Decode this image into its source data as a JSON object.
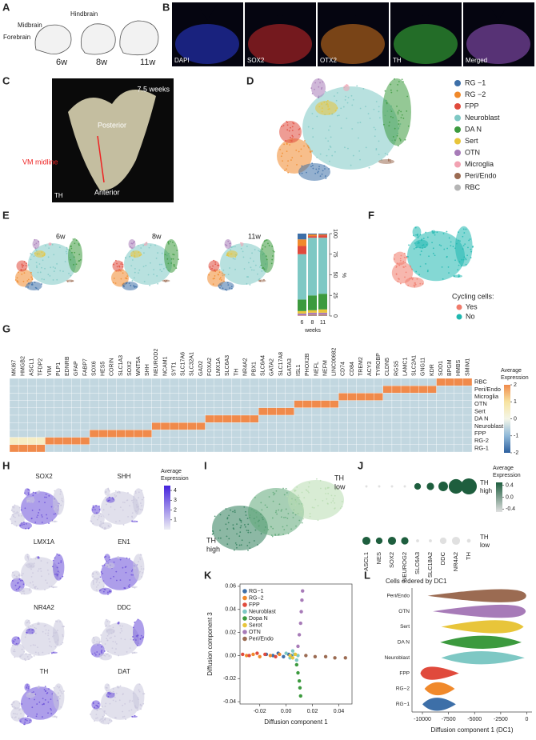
{
  "panel_a": {
    "letter": "A",
    "regions": [
      "Hindbrain",
      "Midbrain",
      "Forebrain"
    ],
    "ages": [
      "6w",
      "8w",
      "11w"
    ]
  },
  "panel_b": {
    "letter": "B",
    "channels": [
      "DAPI",
      "SOX2",
      "OTX2",
      "TH",
      "Merged"
    ],
    "colors": [
      "#2a3ad8",
      "#d02a2a",
      "#d9781e",
      "#3cc23c",
      "#9a58c8"
    ]
  },
  "panel_c": {
    "letter": "C",
    "age": "7.5 weeks",
    "posterior": "Posterior",
    "midline": "VM midline",
    "anterior": "Anterior",
    "stain": "TH"
  },
  "panel_d": {
    "letter": "D",
    "legend": [
      {
        "name": "RG −1",
        "color": "#3d6fa8"
      },
      {
        "name": "RG −2",
        "color": "#f0892b"
      },
      {
        "name": "FPP",
        "color": "#e04a3c"
      },
      {
        "name": "Neuroblast",
        "color": "#7ec8c4"
      },
      {
        "name": "DA N",
        "color": "#3c9a3e"
      },
      {
        "name": "Sert",
        "color": "#e8c53a"
      },
      {
        "name": "OTN",
        "color": "#a77bb8"
      },
      {
        "name": "Microglia",
        "color": "#f2a2b2"
      },
      {
        "name": "Peri/Endo",
        "color": "#9b6b52"
      },
      {
        "name": "RBC",
        "color": "#b5b5b5"
      }
    ]
  },
  "panel_e": {
    "letter": "E",
    "umap_titles": [
      "6w",
      "8w",
      "11w"
    ],
    "bar": {
      "categories": [
        "6",
        "8",
        "11"
      ],
      "xlabel": "weeks",
      "ylabel": "%",
      "ylim": [
        0,
        100
      ],
      "yticks": [
        0,
        25,
        50,
        75,
        100
      ],
      "series": [
        {
          "color": "#b5b5b5",
          "values": [
            0.2,
            0.5,
            0.5
          ]
        },
        {
          "color": "#9b6b52",
          "values": [
            0.3,
            1,
            1
          ]
        },
        {
          "color": "#f2a2b2",
          "values": [
            0.5,
            0.5,
            0.5
          ]
        },
        {
          "color": "#a77bb8",
          "values": [
            2,
            2,
            2
          ]
        },
        {
          "color": "#e8c53a",
          "values": [
            3,
            3,
            4
          ]
        },
        {
          "color": "#3c9a3e",
          "values": [
            14,
            18,
            19
          ]
        },
        {
          "color": "#7ec8c4",
          "values": [
            55,
            70,
            68
          ]
        },
        {
          "color": "#e04a3c",
          "values": [
            10,
            2,
            3
          ]
        },
        {
          "color": "#f0892b",
          "values": [
            8,
            2,
            1
          ]
        },
        {
          "color": "#3d6fa8",
          "values": [
            7,
            1,
            1
          ]
        }
      ]
    }
  },
  "panel_f": {
    "letter": "F",
    "legend_title": "Cycling cells:",
    "legend": [
      {
        "name": "Yes",
        "color": "#f07b6b"
      },
      {
        "name": "No",
        "color": "#1fb8b0"
      }
    ]
  },
  "panel_g": {
    "letter": "G",
    "genes": [
      "MKI67",
      "HMGB2",
      "ASCL1",
      "TFDP2",
      "VIM",
      "PLP1",
      "EDNRB",
      "GFAP",
      "FABP7",
      "SOX6",
      "HES5",
      "CORIN",
      "SLC1A3",
      "SOX2",
      "WNT5A",
      "SHH",
      "NEUROD2",
      "NCAM1",
      "SYT1",
      "SLC17A6",
      "SLC32A1",
      "GAD2",
      "FOXA2",
      "LMX1A",
      "SLC6A3",
      "TH",
      "NR4A2",
      "PBX1",
      "SLC6A4",
      "GATA2",
      "SLC17A8",
      "GATA3",
      "ISL1",
      "PHOX2B",
      "NEFL",
      "NEFM",
      "LINC00682",
      "CD74",
      "CD84",
      "TREM2",
      "ACY3",
      "TYROBP",
      "CLDN5",
      "RGS5",
      "LAMC1",
      "SLC2A1",
      "GNG11",
      "KDR",
      "SOD1",
      "BPGM",
      "HMBS",
      "SMIM1"
    ],
    "rows": [
      "RBC",
      "Peri/Endo",
      "Microglia",
      "OTN",
      "Sert",
      "DA N",
      "Neuroblast",
      "FPP",
      "RG-2",
      "RG-1"
    ],
    "values": [
      [
        -0.5,
        -0.5,
        -0.5,
        -0.5,
        -0.5,
        -0.5,
        -0.5,
        -0.5,
        -0.5,
        -0.5,
        -0.5,
        -0.5,
        -0.5,
        -0.5,
        -0.5,
        -0.5,
        -0.5,
        -0.5,
        -0.5,
        -0.5,
        -0.5,
        -0.5,
        -0.5,
        -0.5,
        -0.5,
        -0.5,
        -0.5,
        -0.5,
        -0.5,
        -0.5,
        -0.5,
        -0.5,
        -0.5,
        -0.5,
        -0.5,
        -0.5,
        -0.5,
        -0.5,
        -0.5,
        -0.5,
        -0.5,
        -0.5,
        -0.5,
        -0.5,
        -0.5,
        -0.5,
        -0.5,
        -0.5,
        2,
        2,
        2,
        2
      ],
      [
        -0.5,
        -0.5,
        -0.5,
        -0.5,
        -0.5,
        -0.5,
        -0.5,
        -0.5,
        -0.5,
        -0.5,
        -0.5,
        -0.5,
        -0.5,
        -0.5,
        -0.5,
        -0.5,
        -0.5,
        -0.5,
        -0.5,
        -0.5,
        -0.5,
        -0.5,
        -0.5,
        -0.5,
        -0.5,
        -0.5,
        -0.5,
        -0.5,
        -0.5,
        -0.5,
        -0.5,
        -0.5,
        -0.5,
        -0.5,
        -0.5,
        -0.5,
        -0.5,
        -0.5,
        -0.5,
        -0.5,
        -0.5,
        -0.5,
        2,
        2,
        2,
        2,
        2,
        2,
        -0.5,
        -0.5,
        -0.5,
        -0.5
      ],
      [
        -0.5,
        -0.5,
        -0.5,
        -0.5,
        -0.5,
        -0.5,
        -0.5,
        -0.5,
        -0.5,
        -0.5,
        -0.5,
        -0.5,
        -0.5,
        -0.5,
        -0.5,
        -0.5,
        -0.5,
        -0.5,
        -0.5,
        -0.5,
        -0.5,
        -0.5,
        -0.5,
        -0.5,
        -0.5,
        -0.5,
        -0.5,
        -0.5,
        -0.5,
        -0.5,
        -0.5,
        -0.5,
        -0.5,
        -0.5,
        -0.5,
        -0.5,
        -0.5,
        2,
        2,
        2,
        2,
        2,
        -0.5,
        -0.5,
        -0.5,
        -0.5,
        -0.5,
        -0.5,
        -0.5,
        -0.5,
        -0.5,
        -0.5
      ],
      [
        -0.5,
        -0.5,
        -0.5,
        -0.5,
        -0.5,
        -0.5,
        -0.5,
        -0.5,
        -0.5,
        -0.5,
        -0.5,
        -0.5,
        -0.5,
        -0.5,
        -0.5,
        -0.5,
        -0.5,
        -0.5,
        -0.5,
        -0.5,
        -0.5,
        -0.5,
        -0.5,
        -0.5,
        -0.5,
        -0.5,
        -0.5,
        -0.5,
        -0.5,
        -0.5,
        -0.5,
        -0.5,
        2,
        2,
        2,
        2,
        2,
        -0.5,
        -0.5,
        -0.5,
        -0.5,
        -0.5,
        -0.5,
        -0.5,
        -0.5,
        -0.5,
        -0.5,
        -0.5,
        -0.5,
        -0.5,
        -0.5,
        -0.5
      ],
      [
        -0.5,
        -0.5,
        -0.5,
        -0.5,
        -0.5,
        -0.5,
        -0.5,
        -0.5,
        -0.5,
        -0.5,
        -0.5,
        -0.5,
        -0.5,
        -0.5,
        -0.5,
        -0.5,
        -0.5,
        -0.5,
        -0.5,
        -0.5,
        -0.5,
        -0.5,
        -0.5,
        -0.5,
        -0.5,
        -0.5,
        -0.5,
        -0.5,
        2,
        2,
        2,
        2,
        -0.5,
        -0.5,
        -0.5,
        -0.5,
        -0.5,
        -0.5,
        -0.5,
        -0.5,
        -0.5,
        -0.5,
        -0.5,
        -0.5,
        -0.5,
        -0.5,
        -0.5,
        -0.5,
        -0.5,
        -0.5,
        -0.5,
        -0.5
      ],
      [
        -0.5,
        -0.5,
        -0.5,
        -0.5,
        -0.5,
        -0.5,
        -0.5,
        -0.5,
        -0.5,
        -0.5,
        -0.5,
        -0.5,
        -0.5,
        -0.5,
        -0.5,
        -0.5,
        -0.5,
        -0.5,
        -0.5,
        -0.5,
        -0.5,
        -0.5,
        2,
        2,
        2,
        2,
        2,
        2,
        -0.5,
        -0.5,
        -0.5,
        -0.5,
        -0.5,
        -0.5,
        -0.5,
        -0.5,
        -0.5,
        -0.5,
        -0.5,
        -0.5,
        -0.5,
        -0.5,
        -0.5,
        -0.5,
        -0.5,
        -0.5,
        -0.5,
        -0.5,
        -0.5,
        -0.5,
        -0.5,
        -0.5
      ],
      [
        -0.5,
        -0.5,
        -0.5,
        -0.5,
        -0.5,
        -0.5,
        -0.5,
        -0.5,
        -0.5,
        -0.5,
        -0.5,
        -0.5,
        -0.5,
        -0.5,
        -0.5,
        -0.5,
        2,
        2,
        2,
        2,
        2,
        2,
        -0.5,
        -0.5,
        -0.5,
        -0.5,
        -0.5,
        -0.5,
        -0.5,
        -0.5,
        -0.5,
        -0.5,
        -0.5,
        -0.5,
        -0.5,
        -0.5,
        -0.5,
        -0.5,
        -0.5,
        -0.5,
        -0.5,
        -0.5,
        -0.5,
        -0.5,
        -0.5,
        -0.5,
        -0.5,
        -0.5,
        -0.5,
        -0.5,
        -0.5,
        -0.5
      ],
      [
        -0.5,
        -0.5,
        -0.5,
        -0.5,
        -0.5,
        -0.5,
        -0.5,
        -0.5,
        -0.5,
        2,
        2,
        2,
        2,
        2,
        2,
        2,
        -0.5,
        -0.5,
        -0.5,
        -0.5,
        -0.5,
        -0.5,
        -0.5,
        -0.5,
        -0.5,
        -0.5,
        -0.5,
        -0.5,
        -0.5,
        -0.5,
        -0.5,
        -0.5,
        -0.5,
        -0.5,
        -0.5,
        -0.5,
        -0.5,
        -0.5,
        -0.5,
        -0.5,
        -0.5,
        -0.5,
        -0.5,
        -0.5,
        -0.5,
        -0.5,
        -0.5,
        -0.5,
        -0.5,
        -0.5,
        -0.5,
        -0.5
      ],
      [
        0.5,
        0.5,
        0.5,
        0.5,
        2,
        2,
        2,
        2,
        2,
        -0.5,
        -0.5,
        -0.5,
        -0.5,
        -0.5,
        -0.5,
        -0.5,
        -0.5,
        -0.5,
        -0.5,
        -0.5,
        -0.5,
        -0.5,
        -0.5,
        -0.5,
        -0.5,
        -0.5,
        -0.5,
        -0.5,
        -0.5,
        -0.5,
        -0.5,
        -0.5,
        -0.5,
        -0.5,
        -0.5,
        -0.5,
        -0.5,
        -0.5,
        -0.5,
        -0.5,
        -0.5,
        -0.5,
        -0.5,
        -0.5,
        -0.5,
        -0.5,
        -0.5,
        -0.5,
        -0.5,
        -0.5,
        -0.5,
        -0.5
      ],
      [
        2,
        2,
        2,
        2,
        -0.5,
        -0.5,
        -0.5,
        -0.5,
        -0.5,
        -0.5,
        -0.5,
        -0.5,
        -0.5,
        -0.5,
        -0.5,
        -0.5,
        -0.5,
        -0.5,
        -0.5,
        -0.5,
        -0.5,
        -0.5,
        -0.5,
        -0.5,
        -0.5,
        -0.5,
        -0.5,
        -0.5,
        -0.5,
        -0.5,
        -0.5,
        -0.5,
        -0.5,
        -0.5,
        -0.5,
        -0.5,
        -0.5,
        -0.5,
        -0.5,
        -0.5,
        -0.5,
        -0.5,
        -0.5,
        -0.5,
        -0.5,
        -0.5,
        -0.5,
        -0.5,
        -0.5,
        -0.5,
        -0.5,
        -0.5
      ]
    ],
    "colorbar": {
      "title": [
        "Average",
        "Expression"
      ],
      "lim": [
        -2,
        2
      ],
      "ticks": [
        2,
        1,
        0,
        -1,
        -2
      ]
    }
  },
  "panel_h": {
    "letter": "H",
    "genes": [
      "SOX2",
      "SHH",
      "LMX1A",
      "EN1",
      "NR4A2",
      "DDC",
      "TH",
      "DAT"
    ],
    "colorbar": {
      "title": [
        "Average",
        "Expression"
      ],
      "lim": [
        0,
        4.5
      ],
      "ticks": [
        4,
        3,
        2,
        1
      ]
    }
  },
  "panel_i": {
    "letter": "I",
    "high": [
      "TH",
      "high"
    ],
    "low": [
      "TH",
      "low"
    ]
  },
  "panel_j": {
    "letter": "J",
    "genes": [
      "ASCL1",
      "NES",
      "SOX2",
      "NEUROG2",
      "SLC6A3",
      "SLC18A2",
      "DDC",
      "NR4A2",
      "TH"
    ],
    "rows": [
      [
        "TH",
        "high"
      ],
      [
        "TH",
        "low"
      ]
    ],
    "values": [
      [
        -0.5,
        -0.5,
        -0.5,
        -0.5,
        0.5,
        0.5,
        0.5,
        0.5,
        0.5
      ],
      [
        0.5,
        0.5,
        0.5,
        0.5,
        -0.5,
        -0.5,
        -0.5,
        -0.5,
        -0.5
      ]
    ],
    "dot_size": [
      [
        0.05,
        0.05,
        0.05,
        0.05,
        0.35,
        0.4,
        0.55,
        0.9,
        1.0
      ],
      [
        0.45,
        0.35,
        0.45,
        0.4,
        0.1,
        0.1,
        0.35,
        0.45,
        0.15
      ]
    ],
    "colorbar": {
      "title": [
        "Average",
        "Expression"
      ],
      "lim": [
        -0.5,
        0.5
      ],
      "ticks": [
        0.4,
        {
          "value": 0,
          "label": "0.0"
        },
        -0.4
      ]
    }
  },
  "panel_k": {
    "letter": "K",
    "xlabel": "Diffusion component 1",
    "ylabel": "Diffusion component 3",
    "xlim": [
      -0.035,
      0.05
    ],
    "ylim": [
      -0.042,
      0.062
    ],
    "xticks": [
      -0.02,
      {
        "value": 0,
        "label": "0.00"
      },
      0.02,
      0.04
    ],
    "yticks": [
      -0.04,
      -0.02,
      {
        "value": 0,
        "label": "0.00"
      },
      0.02,
      0.04,
      0.06
    ],
    "series": [
      {
        "name": "RG−1",
        "color": "#3d6fa8",
        "x": [
          -0.015,
          -0.01,
          -0.006,
          -0.002,
          0.002,
          0.004
        ],
        "y": [
          0.001,
          0.0,
          0.002,
          -0.001,
          0.001,
          0.0
        ]
      },
      {
        "name": "RG−2",
        "color": "#f0892b",
        "x": [
          -0.03,
          -0.025,
          -0.02,
          -0.012,
          -0.005
        ],
        "y": [
          0.0,
          0.001,
          -0.001,
          0.0,
          0.001
        ]
      },
      {
        "name": "FPP",
        "color": "#e04a3c",
        "x": [
          -0.033,
          -0.028,
          -0.022,
          -0.016,
          -0.008
        ],
        "y": [
          0.001,
          0.0,
          0.002,
          0.001,
          -0.001
        ]
      },
      {
        "name": "Neuroblast",
        "color": "#7ec8c4",
        "x": [
          0.0,
          0.003,
          0.006,
          0.008,
          0.005,
          0.009
        ],
        "y": [
          0.002,
          -0.002,
          0.001,
          -0.004,
          0.004,
          0.0
        ]
      },
      {
        "name": "Dopa N",
        "color": "#3c9a3e",
        "x": [
          0.008,
          0.009,
          0.01,
          0.0105,
          0.011
        ],
        "y": [
          -0.008,
          -0.015,
          -0.022,
          -0.028,
          -0.035
        ]
      },
      {
        "name": "Serot",
        "color": "#e8c53a",
        "x": [
          0.003,
          0.005,
          0.007
        ],
        "y": [
          0.0,
          -0.002,
          0.001
        ]
      },
      {
        "name": "OTN",
        "color": "#a77bb8",
        "x": [
          0.009,
          0.01,
          0.011,
          0.0115,
          0.012,
          0.0125
        ],
        "y": [
          0.008,
          0.018,
          0.028,
          0.038,
          0.048,
          0.056
        ]
      },
      {
        "name": "Peri/Endo",
        "color": "#9b6b52",
        "x": [
          0.015,
          0.022,
          0.03,
          0.037,
          0.045
        ],
        "y": [
          0.0,
          -0.001,
          -0.001,
          -0.002,
          -0.002
        ]
      }
    ]
  },
  "panel_l": {
    "letter": "L",
    "title": "Cells ordered by DC1",
    "xlabel": "Diffusion component 1 (DC1)",
    "xlim": [
      -11000,
      500
    ],
    "xticks": [
      -10000,
      -7500,
      -5000,
      -2500,
      0
    ],
    "categories": [
      "RG−1",
      "RG−2",
      "FPP",
      "Neuroblast",
      "DA N",
      "Sert",
      "OTN",
      "Peri/Endo"
    ],
    "colors": [
      "#3d6fa8",
      "#f0892b",
      "#e04a3c",
      "#7ec8c4",
      "#3c9a3e",
      "#e8c53a",
      "#a77bb8",
      "#9b6b52"
    ],
    "ranges": [
      [
        -10000,
        -6800
      ],
      [
        -9800,
        -6900
      ],
      [
        -10200,
        -6500
      ],
      [
        -8200,
        -200
      ],
      [
        -8300,
        -500
      ],
      [
        -8200,
        -300
      ],
      [
        -9000,
        -100
      ],
      [
        -9500,
        -50
      ]
    ],
    "peaks": [
      -8800,
      -8700,
      -9800,
      -4500,
      -4000,
      -1800,
      -300,
      -100
    ]
  }
}
